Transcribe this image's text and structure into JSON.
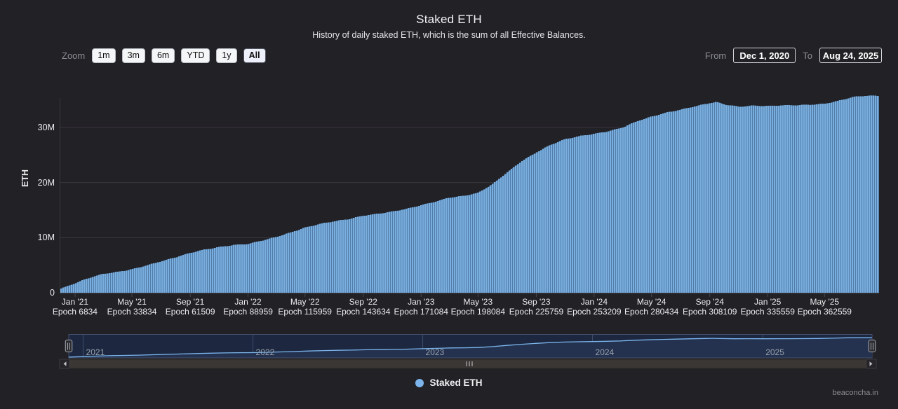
{
  "header": {
    "title": "Staked ETH",
    "subtitle": "History of daily staked ETH, which is the sum of all Effective Balances."
  },
  "toolbar": {
    "zoom_label": "Zoom",
    "zoom_buttons": [
      "1m",
      "3m",
      "6m",
      "YTD",
      "1y",
      "All"
    ],
    "zoom_selected": "All",
    "from_label": "From",
    "from_value": "Dec 1, 2020",
    "to_label": "To",
    "to_value": "Aug 24, 2025"
  },
  "y_axis": {
    "title": "ETH",
    "ticks": [
      {
        "label": "0",
        "value": 0
      },
      {
        "label": "10M",
        "value": 10
      },
      {
        "label": "20M",
        "value": 20
      },
      {
        "label": "30M",
        "value": 30
      }
    ]
  },
  "navigator": {
    "years": [
      {
        "label": "2021",
        "date": "2021-01-01"
      },
      {
        "label": "2022",
        "date": "2022-01-01"
      },
      {
        "label": "2023",
        "date": "2023-01-01"
      },
      {
        "label": "2024",
        "date": "2024-01-01"
      },
      {
        "label": "2025",
        "date": "2025-01-01"
      }
    ]
  },
  "legend": {
    "label": "Staked ETH",
    "color": "#7cb5ec"
  },
  "watermark": {
    "text": "beaconcha.in"
  },
  "colors": {
    "background": "#222126",
    "bar_fill": "#79aede",
    "bar_gap": "#517ca8",
    "gridline": "#3a383e",
    "navigator_bg": "#1d2840",
    "navigator_area": "#24324f",
    "navigator_line": "#7cb5ec",
    "scrollbar_track": "#3b3734"
  },
  "chart_data": {
    "type": "column",
    "title": "Staked ETH",
    "subtitle": "History of daily staked ETH, which is the sum of all Effective Balances.",
    "ylabel": "ETH",
    "unit": "millions of ETH",
    "ylim": [
      0,
      36
    ],
    "grid": true,
    "legend_position": "bottom-center",
    "range": {
      "from_iso": "2020-12-01",
      "to_iso": "2025-08-24"
    },
    "x_ticks": [
      {
        "date": "2021-01-01",
        "label": "Jan '21",
        "epoch": "Epoch 6834"
      },
      {
        "date": "2021-05-01",
        "label": "May '21",
        "epoch": "Epoch 33834"
      },
      {
        "date": "2021-09-01",
        "label": "Sep '21",
        "epoch": "Epoch 61509"
      },
      {
        "date": "2022-01-01",
        "label": "Jan '22",
        "epoch": "Epoch 88959"
      },
      {
        "date": "2022-05-01",
        "label": "May '22",
        "epoch": "Epoch 115959"
      },
      {
        "date": "2022-09-01",
        "label": "Sep '22",
        "epoch": "Epoch 143634"
      },
      {
        "date": "2023-01-01",
        "label": "Jan '23",
        "epoch": "Epoch 171084"
      },
      {
        "date": "2023-05-01",
        "label": "May '23",
        "epoch": "Epoch 198084"
      },
      {
        "date": "2023-09-01",
        "label": "Sep '23",
        "epoch": "Epoch 225759"
      },
      {
        "date": "2024-01-01",
        "label": "Jan '24",
        "epoch": "Epoch 253209"
      },
      {
        "date": "2024-05-01",
        "label": "May '24",
        "epoch": "Epoch 280434"
      },
      {
        "date": "2024-09-01",
        "label": "Sep '24",
        "epoch": "Epoch 308109"
      },
      {
        "date": "2025-01-01",
        "label": "Jan '25",
        "epoch": "Epoch 335559"
      },
      {
        "date": "2025-05-01",
        "label": "May '25",
        "epoch": "Epoch 362559"
      }
    ],
    "series": [
      {
        "name": "Staked ETH",
        "points": [
          {
            "date": "2020-12-01",
            "eth_m": 0.7
          },
          {
            "date": "2021-01-01",
            "eth_m": 1.7
          },
          {
            "date": "2021-02-01",
            "eth_m": 2.7
          },
          {
            "date": "2021-03-01",
            "eth_m": 3.4
          },
          {
            "date": "2021-04-01",
            "eth_m": 3.8
          },
          {
            "date": "2021-05-01",
            "eth_m": 4.3
          },
          {
            "date": "2021-06-01",
            "eth_m": 5.0
          },
          {
            "date": "2021-07-01",
            "eth_m": 5.7
          },
          {
            "date": "2021-08-01",
            "eth_m": 6.4
          },
          {
            "date": "2021-09-01",
            "eth_m": 7.2
          },
          {
            "date": "2021-10-01",
            "eth_m": 7.8
          },
          {
            "date": "2021-11-01",
            "eth_m": 8.3
          },
          {
            "date": "2021-12-01",
            "eth_m": 8.7
          },
          {
            "date": "2022-01-01",
            "eth_m": 8.9
          },
          {
            "date": "2022-02-01",
            "eth_m": 9.5
          },
          {
            "date": "2022-03-01",
            "eth_m": 10.1
          },
          {
            "date": "2022-04-01",
            "eth_m": 10.9
          },
          {
            "date": "2022-05-01",
            "eth_m": 11.8
          },
          {
            "date": "2022-06-01",
            "eth_m": 12.5
          },
          {
            "date": "2022-07-01",
            "eth_m": 13.0
          },
          {
            "date": "2022-08-01",
            "eth_m": 13.4
          },
          {
            "date": "2022-09-01",
            "eth_m": 14.0
          },
          {
            "date": "2022-10-01",
            "eth_m": 14.3
          },
          {
            "date": "2022-11-01",
            "eth_m": 14.7
          },
          {
            "date": "2022-12-01",
            "eth_m": 15.2
          },
          {
            "date": "2023-01-01",
            "eth_m": 15.9
          },
          {
            "date": "2023-02-01",
            "eth_m": 16.6
          },
          {
            "date": "2023-03-01",
            "eth_m": 17.3
          },
          {
            "date": "2023-04-01",
            "eth_m": 17.6
          },
          {
            "date": "2023-05-01",
            "eth_m": 18.1
          },
          {
            "date": "2023-06-01",
            "eth_m": 19.7
          },
          {
            "date": "2023-07-01",
            "eth_m": 21.8
          },
          {
            "date": "2023-08-01",
            "eth_m": 23.9
          },
          {
            "date": "2023-09-01",
            "eth_m": 25.5
          },
          {
            "date": "2023-10-01",
            "eth_m": 26.9
          },
          {
            "date": "2023-11-01",
            "eth_m": 27.9
          },
          {
            "date": "2023-12-01",
            "eth_m": 28.4
          },
          {
            "date": "2024-01-01",
            "eth_m": 28.8
          },
          {
            "date": "2024-02-01",
            "eth_m": 29.3
          },
          {
            "date": "2024-03-01",
            "eth_m": 30.0
          },
          {
            "date": "2024-04-01",
            "eth_m": 31.2
          },
          {
            "date": "2024-05-01",
            "eth_m": 32.0
          },
          {
            "date": "2024-06-01",
            "eth_m": 32.7
          },
          {
            "date": "2024-07-01",
            "eth_m": 33.2
          },
          {
            "date": "2024-08-01",
            "eth_m": 33.8
          },
          {
            "date": "2024-09-01",
            "eth_m": 34.4
          },
          {
            "date": "2024-09-15",
            "eth_m": 34.6
          },
          {
            "date": "2024-10-01",
            "eth_m": 34.2
          },
          {
            "date": "2024-11-01",
            "eth_m": 33.8
          },
          {
            "date": "2024-12-01",
            "eth_m": 34.0
          },
          {
            "date": "2025-01-01",
            "eth_m": 33.9
          },
          {
            "date": "2025-02-01",
            "eth_m": 34.0
          },
          {
            "date": "2025-03-01",
            "eth_m": 34.0
          },
          {
            "date": "2025-04-01",
            "eth_m": 34.1
          },
          {
            "date": "2025-05-01",
            "eth_m": 34.3
          },
          {
            "date": "2025-06-01",
            "eth_m": 34.9
          },
          {
            "date": "2025-07-01",
            "eth_m": 35.6
          },
          {
            "date": "2025-08-01",
            "eth_m": 35.8
          },
          {
            "date": "2025-08-24",
            "eth_m": 35.7
          }
        ]
      }
    ]
  }
}
